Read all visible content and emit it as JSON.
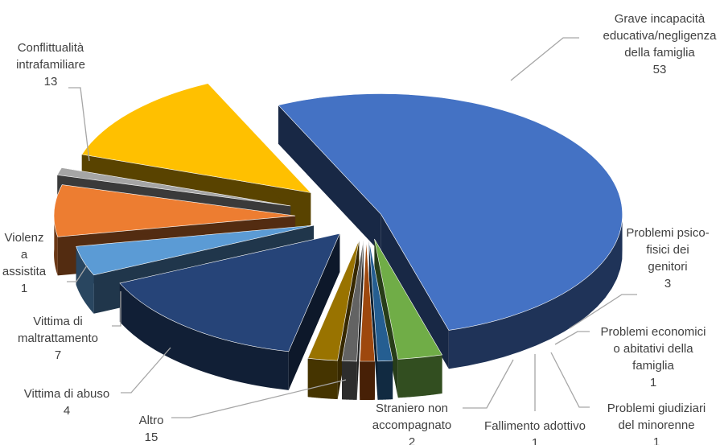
{
  "chart_data": {
    "type": "pie",
    "style": "3d-exploded",
    "title": "",
    "legend": "none",
    "slices": [
      {
        "label": "Grave incapacità educativa/negligenza della famiglia",
        "value": 53,
        "color": "#4472C4"
      },
      {
        "label": "Problemi psico-fisici dei genitori",
        "value": 3,
        "color": "#70AD47"
      },
      {
        "label": "Problemi economici o abitativi della famiglia",
        "value": 1,
        "color": "#255E91"
      },
      {
        "label": "Problemi giudiziari del minorenne",
        "value": 1,
        "color": "#9E480E"
      },
      {
        "label": "Fallimento adottivo",
        "value": 1,
        "color": "#636363"
      },
      {
        "label": "Straniero non accompagnato",
        "value": 2,
        "color": "#997300"
      },
      {
        "label": "Altro",
        "value": 15,
        "color": "#264478"
      },
      {
        "label": "Vittima di abuso",
        "value": 4,
        "color": "#5B9BD5"
      },
      {
        "label": "Vittima di maltrattamento",
        "value": 7,
        "color": "#ED7D31"
      },
      {
        "label": "Violenza assistita",
        "value": 1,
        "color": "#A5A5A5"
      },
      {
        "label": "Conflittualità intrafamiliare",
        "value": 13,
        "color": "#FFC000"
      }
    ]
  },
  "labels": {
    "grave": {
      "lines": [
        "Grave incapacità",
        "educativa/negligenza",
        "della famiglia"
      ],
      "value": "53"
    },
    "psico": {
      "lines": [
        "Problemi psico-",
        "fisici dei",
        "genitori"
      ],
      "value": "3"
    },
    "economici": {
      "lines": [
        "Problemi economici",
        "o abitativi della",
        "famiglia"
      ],
      "value": "1"
    },
    "giudiziari": {
      "lines": [
        "Problemi giudiziari",
        "del minorenne"
      ],
      "value": "1"
    },
    "fallimento": {
      "lines": [
        "Fallimento adottivo"
      ],
      "value": "1"
    },
    "straniero": {
      "lines": [
        "Straniero non",
        "accompagnato"
      ],
      "value": "2"
    },
    "altro": {
      "lines": [
        "Altro"
      ],
      "value": "15"
    },
    "abuso": {
      "lines": [
        "Vittima di abuso"
      ],
      "value": "4"
    },
    "maltrattamento": {
      "lines": [
        "Vittima di",
        "maltrattamento"
      ],
      "value": "7"
    },
    "violenza": {
      "lines": [
        "Violenz",
        "a",
        "assistita"
      ],
      "value": "1"
    },
    "conflittualita": {
      "lines": [
        "Conflittualità",
        "intrafamiliare"
      ],
      "value": "13"
    }
  }
}
